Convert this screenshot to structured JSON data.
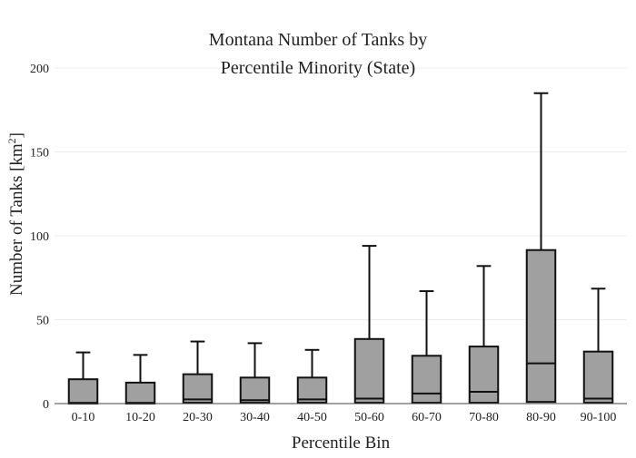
{
  "chart_data": {
    "type": "box",
    "title_lines": [
      "Montana Number of Tanks by",
      "Percentile Minority (State)"
    ],
    "xlabel": "Percentile Bin",
    "ylabel_main": "Number of Tanks  [km",
    "ylabel_sup": "2",
    "ylabel_end": "]",
    "ylim": [
      0,
      200
    ],
    "yticks": [
      0,
      50,
      100,
      150,
      200
    ],
    "grid": true,
    "legend": "none",
    "colors": {
      "box_fill": "#a0a0a0",
      "box_stroke": "#111111",
      "grid": "#ececec",
      "axis_line": "#444444"
    },
    "categories": [
      "0-10",
      "10-20",
      "20-30",
      "30-40",
      "40-50",
      "50-60",
      "60-70",
      "70-80",
      "80-90",
      "90-100"
    ],
    "boxes": [
      {
        "category": "0-10",
        "min": 0,
        "q1": 0,
        "median": 0.5,
        "q3": 14.5,
        "max": 30.5
      },
      {
        "category": "10-20",
        "min": 0,
        "q1": 0,
        "median": 0.5,
        "q3": 12.5,
        "max": 29
      },
      {
        "category": "20-30",
        "min": 0,
        "q1": 0.5,
        "median": 2.5,
        "q3": 17.5,
        "max": 37
      },
      {
        "category": "30-40",
        "min": 0,
        "q1": 0.5,
        "median": 2,
        "q3": 15.5,
        "max": 36
      },
      {
        "category": "40-50",
        "min": 0,
        "q1": 0.5,
        "median": 2.5,
        "q3": 15.5,
        "max": 32
      },
      {
        "category": "50-60",
        "min": 0,
        "q1": 0.5,
        "median": 3,
        "q3": 38.5,
        "max": 94
      },
      {
        "category": "60-70",
        "min": 0,
        "q1": 0.5,
        "median": 6,
        "q3": 28.5,
        "max": 67
      },
      {
        "category": "70-80",
        "min": 0,
        "q1": 0.5,
        "median": 7,
        "q3": 34,
        "max": 82
      },
      {
        "category": "80-90",
        "min": 0,
        "q1": 1,
        "median": 24,
        "q3": 91.5,
        "max": 185
      },
      {
        "category": "90-100",
        "min": 0,
        "q1": 0.5,
        "median": 3,
        "q3": 31,
        "max": 68.5
      }
    ]
  }
}
